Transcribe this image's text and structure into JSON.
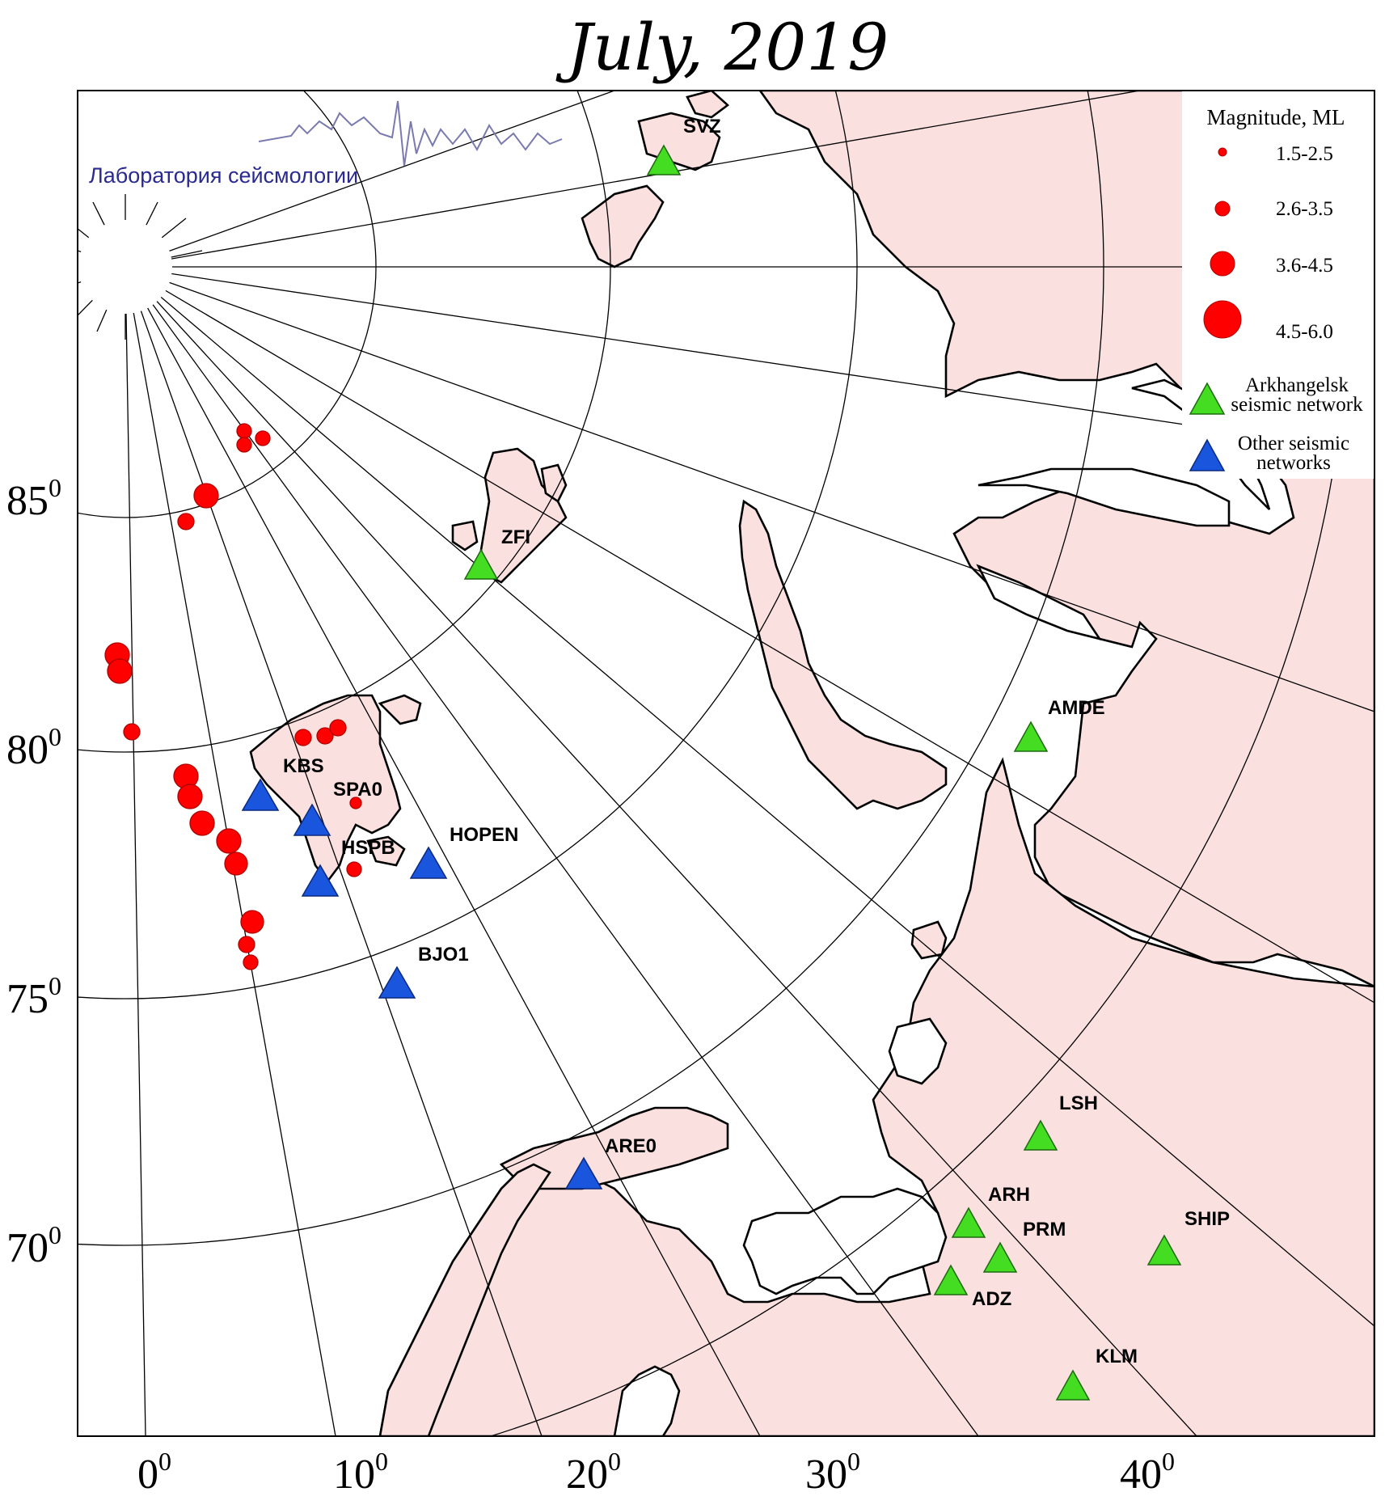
{
  "title": "July, 2019",
  "logo_text": "Лаборатория сейсмологии",
  "lat_labels": [
    {
      "base": "85",
      "sup": "0"
    },
    {
      "base": "80",
      "sup": "0"
    },
    {
      "base": "75",
      "sup": "0"
    },
    {
      "base": "70",
      "sup": "0"
    }
  ],
  "lon_labels": [
    {
      "base": "0",
      "sup": "0"
    },
    {
      "base": "10",
      "sup": "0"
    },
    {
      "base": "20",
      "sup": "0"
    },
    {
      "base": "30",
      "sup": "0"
    },
    {
      "base": "40",
      "sup": "0"
    }
  ],
  "legend": {
    "title": "Magnitude, ML",
    "magnitudes": [
      "1.5-2.5",
      "2.6-3.5",
      "3.6-4.5",
      "4.5-6.0"
    ],
    "arkhangelsk_line1": "Arkhangelsk",
    "arkhangelsk_line2": "seismic network",
    "other_line1": "Other seismic",
    "other_line2": "networks"
  },
  "colors": {
    "land": "#fbe0e0",
    "event": "#ff0000",
    "arkhangelsk_station": "#44dd22",
    "other_station": "#1a55dd",
    "logo": "#2a2a90"
  },
  "stations": [
    {
      "code": "SVZ",
      "network": "arkhangelsk"
    },
    {
      "code": "ZFI",
      "network": "arkhangelsk"
    },
    {
      "code": "AMDE",
      "network": "arkhangelsk"
    },
    {
      "code": "LSH",
      "network": "arkhangelsk"
    },
    {
      "code": "ARH",
      "network": "arkhangelsk"
    },
    {
      "code": "PRM",
      "network": "arkhangelsk"
    },
    {
      "code": "ADZ",
      "network": "arkhangelsk"
    },
    {
      "code": "SHIP",
      "network": "arkhangelsk"
    },
    {
      "code": "KLM",
      "network": "arkhangelsk"
    },
    {
      "code": "KBS",
      "network": "other"
    },
    {
      "code": "SPA0",
      "network": "other"
    },
    {
      "code": "HSPB",
      "network": "other"
    },
    {
      "code": "HOPEN",
      "network": "other"
    },
    {
      "code": "BJO1",
      "network": "other"
    },
    {
      "code": "ARE0",
      "network": "other"
    }
  ]
}
